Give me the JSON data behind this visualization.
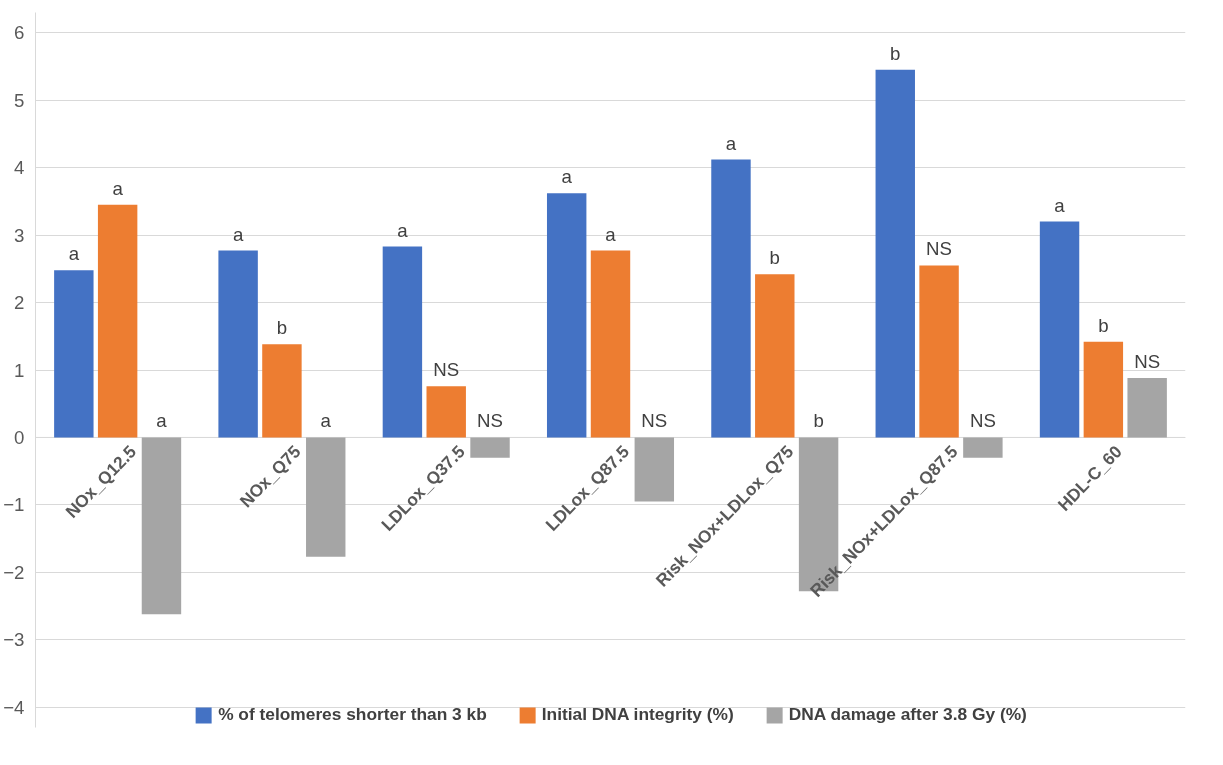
{
  "chart_data": {
    "type": "bar",
    "categories": [
      "NOx_Q12.5",
      "NOx_Q75",
      "LDLox_Q37.5",
      "LDLox_Q87.5",
      "Risk_NOx+LDLox_Q75",
      "Risk_NOx+LDLox_Q87.5",
      "HDL-C_60"
    ],
    "series": [
      {
        "name": "% of telomeres shorter than 3 kb",
        "color": "#4472c4",
        "values": [
          2.48,
          2.77,
          2.83,
          3.62,
          4.12,
          5.45,
          3.2
        ],
        "value_labels": [
          "a",
          "a",
          "a",
          "a",
          "a",
          "b",
          "a"
        ]
      },
      {
        "name": "Initial DNA integrity (%)",
        "color": "#ed7d31",
        "values": [
          3.45,
          1.38,
          0.76,
          2.77,
          2.42,
          2.55,
          1.42
        ],
        "value_labels": [
          "a",
          "b",
          "NS",
          "a",
          "b",
          "NS",
          "b"
        ]
      },
      {
        "name": "DNA damage after 3.8 Gy (%)",
        "color": "#a5a5a5",
        "values": [
          -2.62,
          -1.77,
          -0.3,
          -0.95,
          -2.28,
          -0.3,
          0.88
        ],
        "value_labels": [
          "a",
          "a",
          "NS",
          "NS",
          "b",
          "NS",
          "NS"
        ]
      }
    ],
    "ylim": [
      -4.3,
      6.3
    ],
    "yticks": [
      {
        "value": -4,
        "label": "−4"
      },
      {
        "value": -3,
        "label": "−3"
      },
      {
        "value": -2,
        "label": "−2"
      },
      {
        "value": -1,
        "label": "−1"
      },
      0,
      1,
      2,
      3,
      4,
      5,
      6
    ],
    "grid": "y",
    "legend": "bottom"
  }
}
